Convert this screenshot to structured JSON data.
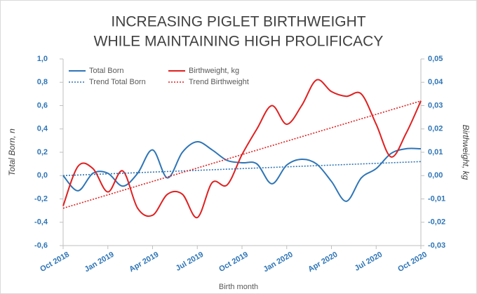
{
  "chart_data": {
    "type": "line",
    "title": [
      "INCREASING PIGLET BIRTHWEIGHT",
      "WHILE MAINTAINING HIGH PROLIFICACY"
    ],
    "x_label": "Birth month",
    "y_label": "Total Born, n",
    "y2_label": "Birthweight, kg",
    "x": [
      "2018-10",
      "2018-11",
      "2018-12",
      "2019-01",
      "2019-02",
      "2019-03",
      "2019-04",
      "2019-05",
      "2019-06",
      "2019-07",
      "2019-08",
      "2019-09",
      "2019-10",
      "2019-11",
      "2019-12",
      "2020-01",
      "2020-02",
      "2020-03",
      "2020-04",
      "2020-05",
      "2020-06",
      "2020-07",
      "2020-08",
      "2020-09",
      "2020-10"
    ],
    "series": [
      {
        "name": "Total Born",
        "color": "#2e75b6",
        "axis": "y",
        "values": [
          0.0,
          -0.13,
          0.02,
          0.02,
          -0.09,
          0.02,
          0.22,
          -0.02,
          0.2,
          0.29,
          0.22,
          0.13,
          0.11,
          0.1,
          -0.07,
          0.09,
          0.14,
          0.1,
          -0.05,
          -0.22,
          -0.02,
          0.06,
          0.19,
          0.23,
          0.23
        ]
      },
      {
        "name": "Birthweight, kg",
        "color": "#e02020",
        "axis": "y2",
        "values": [
          -0.013,
          0.004,
          0.003,
          -0.007,
          0.002,
          -0.014,
          -0.017,
          -0.008,
          -0.008,
          -0.018,
          -0.003,
          -0.004,
          0.009,
          0.02,
          0.03,
          0.022,
          0.03,
          0.041,
          0.036,
          0.034,
          0.035,
          0.022,
          0.008,
          0.018,
          0.032
        ]
      },
      {
        "name": "Trend Total Born",
        "color": "#2e75b6",
        "axis": "y",
        "dashed": true,
        "x": [
          "2018-10",
          "2020-10"
        ],
        "values": [
          0.0,
          0.12
        ]
      },
      {
        "name": "Trend Birthweight",
        "color": "#e02020",
        "axis": "y2",
        "dashed": true,
        "x": [
          "2018-10",
          "2020-10"
        ],
        "values": [
          -0.014,
          0.032
        ]
      }
    ],
    "xlim": [
      "2018-10",
      "2020-10"
    ],
    "xticks": [
      {
        "value": "2018-10",
        "label": "Oct 2018"
      },
      {
        "value": "2019-01",
        "label": "Jan 2019"
      },
      {
        "value": "2019-04",
        "label": "Apr 2019"
      },
      {
        "value": "2019-07",
        "label": "Jul 2019"
      },
      {
        "value": "2019-10",
        "label": "Oct 2019"
      },
      {
        "value": "2020-01",
        "label": "Jan 2020"
      },
      {
        "value": "2020-04",
        "label": "Apr 2020"
      },
      {
        "value": "2020-07",
        "label": "Jul 2020"
      },
      {
        "value": "2020-10",
        "label": "Oct 2020"
      }
    ],
    "ylim": [
      -0.6,
      1.0
    ],
    "yticks": [
      {
        "value": -0.6,
        "label": "-0,6"
      },
      {
        "value": -0.4,
        "label": "-0,4"
      },
      {
        "value": -0.2,
        "label": "-0,2"
      },
      {
        "value": 0,
        "label": "0,0"
      },
      {
        "value": 0.2,
        "label": "0,2"
      },
      {
        "value": 0.4,
        "label": "0,4"
      },
      {
        "value": 0.6,
        "label": "0,6"
      },
      {
        "value": 0.8,
        "label": "0,8"
      },
      {
        "value": 1.0,
        "label": "1,0"
      }
    ],
    "y2lim": [
      -0.03,
      0.05
    ],
    "y2ticks": [
      {
        "value": -0.03,
        "label": "-0,03"
      },
      {
        "value": -0.02,
        "label": "-0,02"
      },
      {
        "value": -0.01,
        "label": "-0,01"
      },
      {
        "value": 0,
        "label": "0,00"
      },
      {
        "value": 0.01,
        "label": "0,01"
      },
      {
        "value": 0.02,
        "label": "0,02"
      },
      {
        "value": 0.03,
        "label": "0,03"
      },
      {
        "value": 0.04,
        "label": "0,04"
      },
      {
        "value": 0.05,
        "label": "0,05"
      }
    ],
    "legend": "upper left",
    "grid": false
  }
}
